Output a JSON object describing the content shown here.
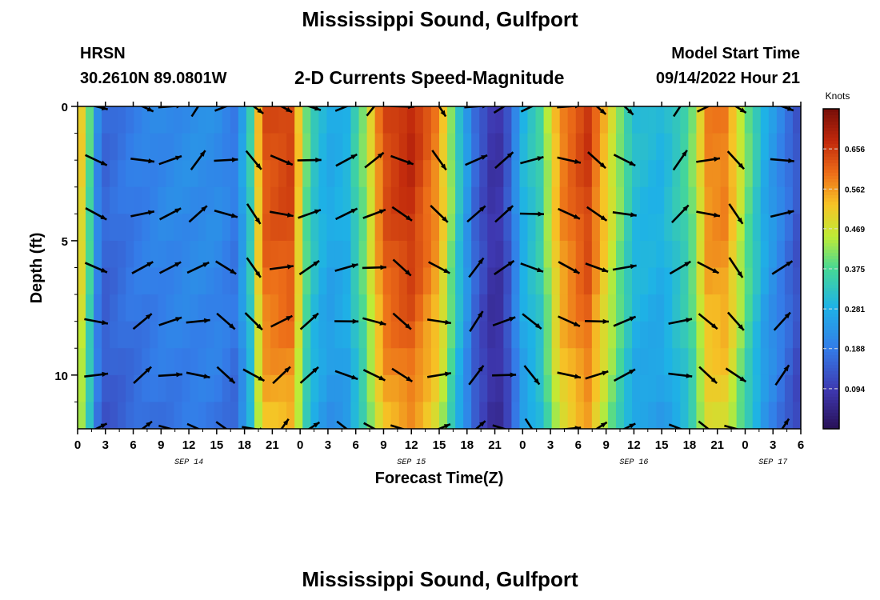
{
  "figure": {
    "title": "Mississippi Sound, Gulfport",
    "station": "HRSN",
    "coordinates": "30.2610N  89.0801W",
    "subtitle": "2-D Currents Speed-Magnitude",
    "model_start_label": "Model Start Time",
    "model_start_value": "09/14/2022 Hour 21",
    "footer_title": "Mississippi Sound, Gulfport"
  },
  "chart_data": {
    "type": "heatmap",
    "title": "2-D Currents Speed-Magnitude",
    "xlabel": "Forecast Time(Z)",
    "ylabel": "Depth (ft)",
    "x_tick_labels": [
      "0",
      "3",
      "6",
      "9",
      "12",
      "15",
      "18",
      "21",
      "0",
      "3",
      "6",
      "9",
      "12",
      "15",
      "18",
      "21",
      "0",
      "3",
      "6",
      "9",
      "12",
      "15",
      "18",
      "21",
      "0",
      "3",
      "6"
    ],
    "date_labels": [
      {
        "label": "SEP 14",
        "at_hour": 12
      },
      {
        "label": "SEP 15",
        "at_hour": 36
      },
      {
        "label": "SEP 16",
        "at_hour": 60
      },
      {
        "label": "SEP 17",
        "at_hour": 75
      }
    ],
    "xlim_hours": [
      0,
      78
    ],
    "ylim_ft": [
      0,
      12
    ],
    "y_reversed": true,
    "y_tick_labels": [
      "0",
      "5",
      "10"
    ],
    "y_tick_values": [
      0,
      5,
      10
    ],
    "colorbar": {
      "label": "Knots",
      "range": [
        0.0,
        0.75
      ],
      "tick_labels": [
        "0.656",
        "0.562",
        "0.469",
        "0.375",
        "0.281",
        "0.188",
        "0.094"
      ],
      "tick_values": [
        0.656,
        0.562,
        0.469,
        0.375,
        0.281,
        0.188,
        0.094
      ]
    },
    "speed_profile_knots": [
      [
        0,
        0.55
      ],
      [
        1,
        0.45
      ],
      [
        2,
        0.22
      ],
      [
        3,
        0.16
      ],
      [
        6,
        0.19
      ],
      [
        9,
        0.21
      ],
      [
        12,
        0.22
      ],
      [
        15,
        0.22
      ],
      [
        17,
        0.19
      ],
      [
        18.5,
        0.32
      ],
      [
        20,
        0.63
      ],
      [
        23,
        0.65
      ],
      [
        25,
        0.35
      ],
      [
        27,
        0.27
      ],
      [
        29,
        0.29
      ],
      [
        31,
        0.42
      ],
      [
        33,
        0.64
      ],
      [
        36,
        0.68
      ],
      [
        39,
        0.57
      ],
      [
        41,
        0.34
      ],
      [
        43,
        0.15
      ],
      [
        45,
        0.07
      ],
      [
        46,
        0.1
      ],
      [
        48,
        0.29
      ],
      [
        50,
        0.36
      ],
      [
        52,
        0.58
      ],
      [
        55,
        0.66
      ],
      [
        58,
        0.45
      ],
      [
        60,
        0.31
      ],
      [
        63,
        0.29
      ],
      [
        66,
        0.38
      ],
      [
        68,
        0.58
      ],
      [
        70,
        0.59
      ],
      [
        72,
        0.42
      ],
      [
        74,
        0.28
      ],
      [
        76,
        0.2
      ],
      [
        78,
        0.12
      ]
    ],
    "vector_depths_ft": [
      0,
      2,
      4,
      6,
      8,
      10,
      12
    ],
    "vector_hours": [
      2,
      7,
      10,
      13,
      16,
      19,
      22,
      25,
      29,
      32,
      35,
      39,
      43,
      46,
      49,
      53,
      56,
      59,
      65,
      68,
      71,
      76
    ]
  }
}
